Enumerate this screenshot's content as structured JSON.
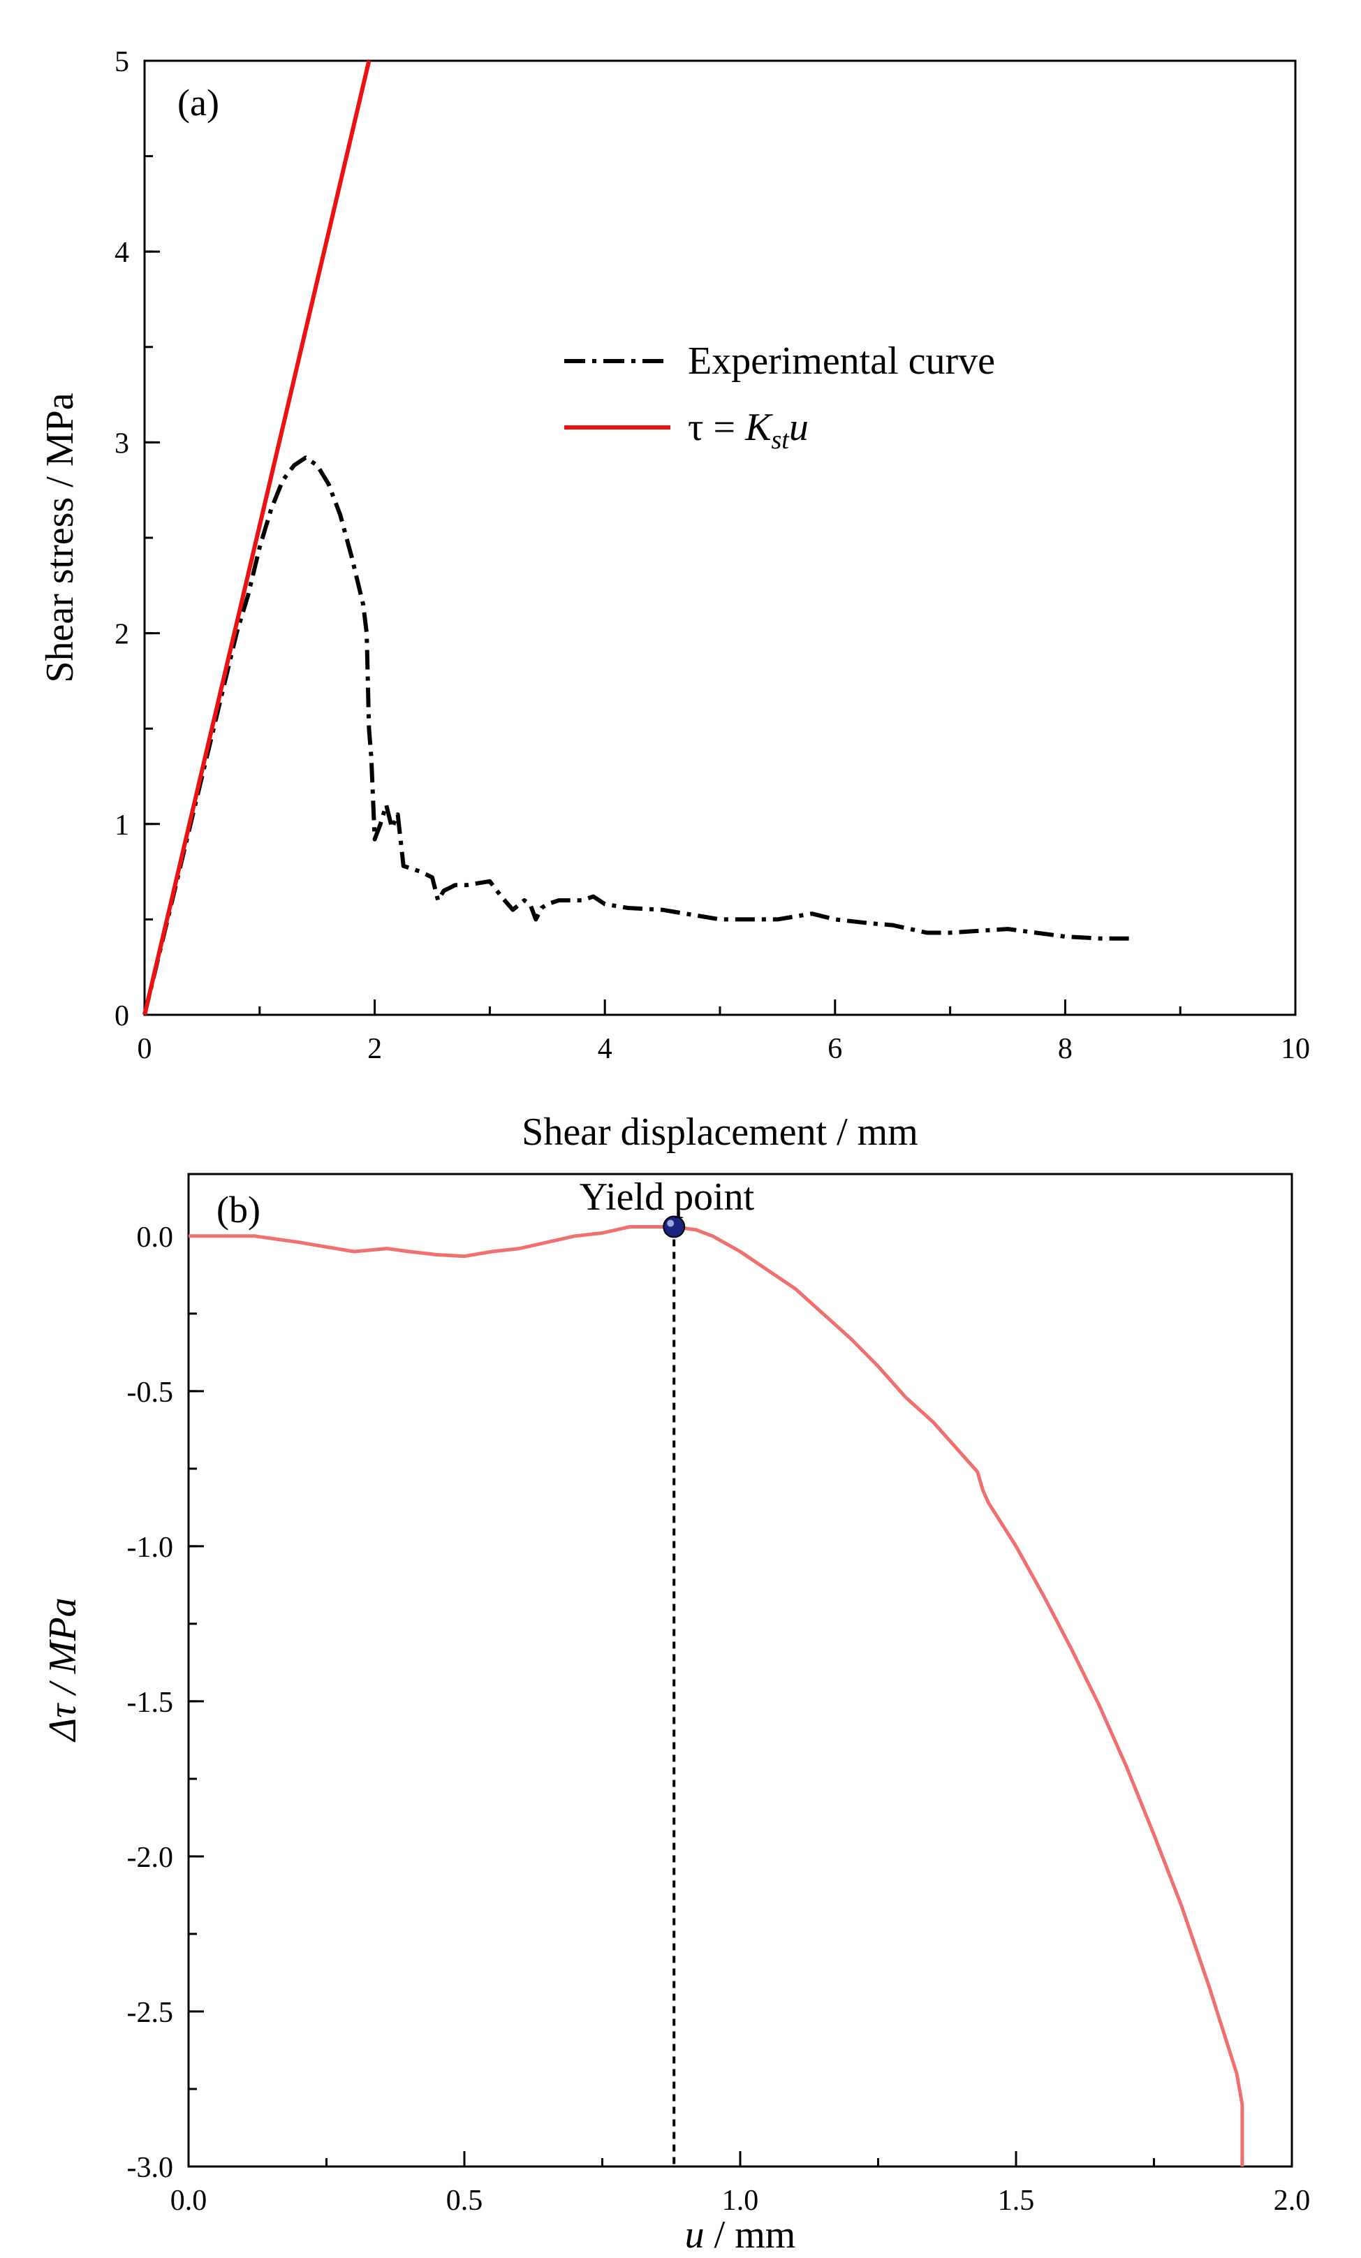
{
  "chart_data": [
    {
      "panel": "(a)",
      "type": "line",
      "xlabel": "Shear displacement / mm",
      "ylabel": "Shear stress / MPa",
      "xlim": [
        0,
        10
      ],
      "ylim": [
        0,
        5
      ],
      "xticks": [
        "0",
        "2",
        "4",
        "6",
        "8",
        "10"
      ],
      "yticks": [
        "0",
        "1",
        "2",
        "3",
        "4",
        "5"
      ],
      "legend_position": "top-right",
      "series": [
        {
          "name": "Experimental curve",
          "style": "dash-dot",
          "color": "#000000",
          "x": [
            0,
            0.2,
            0.4,
            0.6,
            0.8,
            0.9,
            1.0,
            1.1,
            1.2,
            1.3,
            1.4,
            1.5,
            1.6,
            1.7,
            1.8,
            1.9,
            1.93,
            1.95,
            1.97,
            2.0,
            2.05,
            2.1,
            2.15,
            2.2,
            2.25,
            2.3,
            2.4,
            2.5,
            2.55,
            2.6,
            2.7,
            2.8,
            3.0,
            3.1,
            3.2,
            3.3,
            3.35,
            3.4,
            3.45,
            3.5,
            3.6,
            3.8,
            3.9,
            4.0,
            4.2,
            4.5,
            5.0,
            5.5,
            5.8,
            6.0,
            6.3,
            6.5,
            6.8,
            7.0,
            7.5,
            8.0,
            8.3,
            8.6
          ],
          "y": [
            0,
            0.5,
            1.0,
            1.5,
            2.0,
            2.2,
            2.45,
            2.65,
            2.8,
            2.88,
            2.92,
            2.88,
            2.78,
            2.62,
            2.4,
            2.15,
            2.0,
            1.5,
            1.35,
            0.92,
            1.0,
            1.1,
            0.98,
            1.05,
            0.78,
            0.77,
            0.75,
            0.72,
            0.6,
            0.65,
            0.68,
            0.68,
            0.7,
            0.62,
            0.55,
            0.6,
            0.58,
            0.5,
            0.56,
            0.58,
            0.6,
            0.6,
            0.62,
            0.58,
            0.56,
            0.55,
            0.5,
            0.5,
            0.53,
            0.5,
            0.48,
            0.47,
            0.43,
            0.43,
            0.45,
            0.41,
            0.4,
            0.4
          ]
        },
        {
          "name": "τ = K_st u",
          "style": "solid",
          "color": "#ee1111",
          "x": [
            0,
            1.95
          ],
          "y": [
            0,
            5
          ]
        }
      ],
      "legend_entries": [
        {
          "main": "Experimental curve"
        },
        {
          "main": "τ = ",
          "italic": "K",
          "sub": "st",
          "tail": "u"
        }
      ]
    },
    {
      "panel": "(b)",
      "type": "line",
      "xlabel_italic": "u",
      "xlabel": " / mm",
      "ylabel_italic": "Δτ",
      "ylabel": " / MPa",
      "xlim": [
        0,
        2
      ],
      "ylim": [
        -3,
        0.2
      ],
      "xticks": [
        "0.0",
        "0.5",
        "1.0",
        "1.5",
        "2.0"
      ],
      "yticks": [
        "0.0",
        "-0.5",
        "-1.0",
        "-1.5",
        "-2.0",
        "-2.5",
        "-3.0"
      ],
      "annotation": "Yield point",
      "yield_point": {
        "x": 0.88,
        "y": 0.03
      },
      "series": [
        {
          "name": "Δτ",
          "style": "solid",
          "color": "#f07070",
          "x": [
            0,
            0.05,
            0.12,
            0.2,
            0.3,
            0.36,
            0.4,
            0.45,
            0.5,
            0.55,
            0.6,
            0.65,
            0.7,
            0.75,
            0.8,
            0.85,
            0.88,
            0.92,
            0.95,
            1.0,
            1.05,
            1.1,
            1.15,
            1.2,
            1.25,
            1.3,
            1.35,
            1.4,
            1.43,
            1.44,
            1.45,
            1.5,
            1.55,
            1.6,
            1.65,
            1.7,
            1.75,
            1.8,
            1.85,
            1.9,
            1.91,
            1.91
          ],
          "y": [
            0,
            0,
            0,
            -0.02,
            -0.05,
            -0.04,
            -0.05,
            -0.06,
            -0.065,
            -0.05,
            -0.04,
            -0.02,
            0,
            0.01,
            0.03,
            0.03,
            0.03,
            0.02,
            0.0,
            -0.05,
            -0.11,
            -0.17,
            -0.25,
            -0.33,
            -0.42,
            -0.52,
            -0.6,
            -0.7,
            -0.76,
            -0.82,
            -0.86,
            -1.0,
            -1.16,
            -1.33,
            -1.51,
            -1.71,
            -1.93,
            -2.16,
            -2.42,
            -2.7,
            -2.8,
            -3.0
          ]
        }
      ]
    }
  ]
}
